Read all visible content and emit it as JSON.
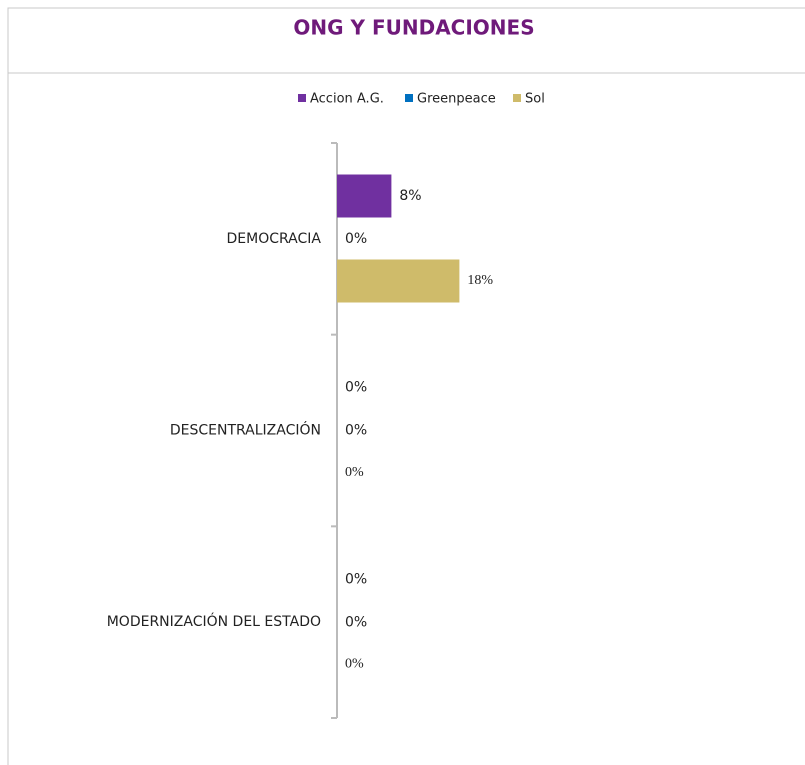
{
  "chart_data": {
    "type": "barh",
    "title": "ONG Y FUNDACIONES",
    "categories": [
      "DEMOCRACIA",
      "DESCENTRALIZACIÓN",
      "MODERNIZACIÓN DEL ESTADO"
    ],
    "series": [
      {
        "name": "Accion A.G.",
        "color": "#7030a0",
        "values": [
          8,
          0,
          0
        ],
        "value_labels": [
          "8%",
          "0%",
          "0%"
        ]
      },
      {
        "name": "Greenpeace",
        "color": "#0070c0",
        "values": [
          0,
          0,
          0
        ],
        "value_labels": [
          "0%",
          "0%",
          "0%"
        ]
      },
      {
        "name": "Sol",
        "color": "#cfbb6a",
        "values": [
          18,
          0,
          0
        ],
        "value_labels": [
          "18%",
          "0%",
          "0%"
        ]
      }
    ],
    "xlim": [
      0,
      60
    ],
    "legend": "top"
  }
}
